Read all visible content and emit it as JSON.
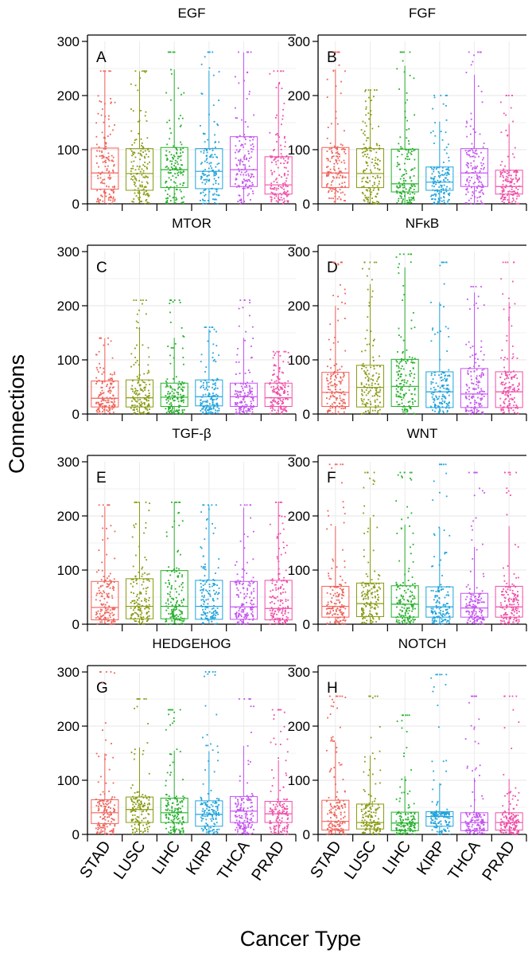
{
  "figure": {
    "ylabel": "Connections",
    "xlabel": "Cancer Type"
  },
  "colors": {
    "STAD": "#f0625a",
    "LUSC": "#8a9a12",
    "LIHC": "#26b02c",
    "KIRP": "#20a4dc",
    "THCA": "#c455f0",
    "PRAD": "#f04fa8"
  },
  "chart_data": [
    {
      "type": "box",
      "panel": "A",
      "title": "EGF",
      "categories": [
        "STAD",
        "LUSC",
        "LIHC",
        "KIRP",
        "THCA",
        "PRAD"
      ],
      "ylim": [
        0,
        300
      ],
      "yticks": [
        0,
        100,
        200,
        300
      ],
      "q1": [
        27,
        25,
        30,
        28,
        32,
        18
      ],
      "median": [
        57,
        56,
        63,
        60,
        63,
        35
      ],
      "q3": [
        103,
        102,
        104,
        102,
        124,
        87
      ],
      "max": [
        245,
        245,
        280,
        280,
        280,
        245
      ]
    },
    {
      "type": "box",
      "panel": "B",
      "title": "FGF",
      "categories": [
        "STAD",
        "LUSC",
        "LIHC",
        "KIRP",
        "THCA",
        "PRAD"
      ],
      "ylim": [
        0,
        300
      ],
      "yticks": [
        0,
        100,
        200,
        300
      ],
      "q1": [
        30,
        30,
        22,
        25,
        32,
        18
      ],
      "median": [
        57,
        56,
        37,
        40,
        57,
        32
      ],
      "q3": [
        104,
        102,
        101,
        68,
        102,
        62
      ],
      "max": [
        280,
        210,
        280,
        200,
        280,
        200
      ]
    },
    {
      "type": "box",
      "panel": "C",
      "title": "MTOR",
      "categories": [
        "STAD",
        "LUSC",
        "LIHC",
        "KIRP",
        "THCA",
        "PRAD"
      ],
      "ylim": [
        0,
        300
      ],
      "yticks": [
        0,
        100,
        200,
        300
      ],
      "q1": [
        13,
        13,
        14,
        15,
        14,
        14
      ],
      "median": [
        29,
        30,
        31,
        32,
        32,
        30
      ],
      "q3": [
        61,
        63,
        57,
        63,
        57,
        57
      ],
      "max": [
        140,
        210,
        210,
        160,
        210,
        115
      ]
    },
    {
      "type": "box",
      "panel": "D",
      "title": "NFκB",
      "categories": [
        "STAD",
        "LUSC",
        "LIHC",
        "KIRP",
        "THCA",
        "PRAD"
      ],
      "ylim": [
        0,
        300
      ],
      "yticks": [
        0,
        100,
        200,
        300
      ],
      "q1": [
        14,
        13,
        14,
        12,
        12,
        12
      ],
      "median": [
        40,
        49,
        51,
        41,
        37,
        41
      ],
      "q3": [
        77,
        90,
        101,
        78,
        84,
        78
      ],
      "max": [
        280,
        280,
        295,
        280,
        235,
        280
      ]
    },
    {
      "type": "box",
      "panel": "E",
      "title": "TGF-β",
      "categories": [
        "STAD",
        "LUSC",
        "LIHC",
        "KIRP",
        "THCA",
        "PRAD"
      ],
      "ylim": [
        0,
        300
      ],
      "yticks": [
        0,
        100,
        200,
        300
      ],
      "q1": [
        8,
        10,
        10,
        9,
        9,
        8
      ],
      "median": [
        31,
        33,
        33,
        33,
        32,
        29
      ],
      "q3": [
        79,
        84,
        99,
        81,
        79,
        81
      ],
      "max": [
        220,
        225,
        225,
        220,
        220,
        225
      ]
    },
    {
      "type": "box",
      "panel": "F",
      "title": "WNT",
      "categories": [
        "STAD",
        "LUSC",
        "LIHC",
        "KIRP",
        "THCA",
        "PRAD"
      ],
      "ylim": [
        0,
        300
      ],
      "yticks": [
        0,
        100,
        200,
        300
      ],
      "q1": [
        13,
        14,
        13,
        13,
        13,
        13
      ],
      "median": [
        33,
        38,
        37,
        32,
        30,
        32
      ],
      "q3": [
        70,
        76,
        71,
        69,
        57,
        70
      ],
      "max": [
        295,
        280,
        280,
        295,
        280,
        280
      ]
    },
    {
      "type": "box",
      "panel": "G",
      "title": "HEDGEHOG",
      "categories": [
        "STAD",
        "LUSC",
        "LIHC",
        "KIRP",
        "THCA",
        "PRAD"
      ],
      "ylim": [
        0,
        300
      ],
      "yticks": [
        0,
        100,
        200,
        300
      ],
      "q1": [
        20,
        22,
        22,
        15,
        22,
        22
      ],
      "median": [
        40,
        46,
        40,
        37,
        43,
        38
      ],
      "q3": [
        64,
        69,
        67,
        62,
        70,
        61
      ],
      "max": [
        300,
        250,
        230,
        300,
        250,
        230
      ]
    },
    {
      "type": "box",
      "panel": "H",
      "title": "NOTCH",
      "categories": [
        "STAD",
        "LUSC",
        "LIHC",
        "KIRP",
        "THCA",
        "PRAD"
      ],
      "ylim": [
        0,
        300
      ],
      "yticks": [
        0,
        100,
        200,
        300
      ],
      "q1": [
        8,
        10,
        7,
        15,
        7,
        8
      ],
      "median": [
        24,
        22,
        21,
        33,
        22,
        22
      ],
      "q3": [
        63,
        56,
        41,
        42,
        40,
        40
      ],
      "max": [
        255,
        255,
        220,
        295,
        255,
        255
      ]
    }
  ]
}
